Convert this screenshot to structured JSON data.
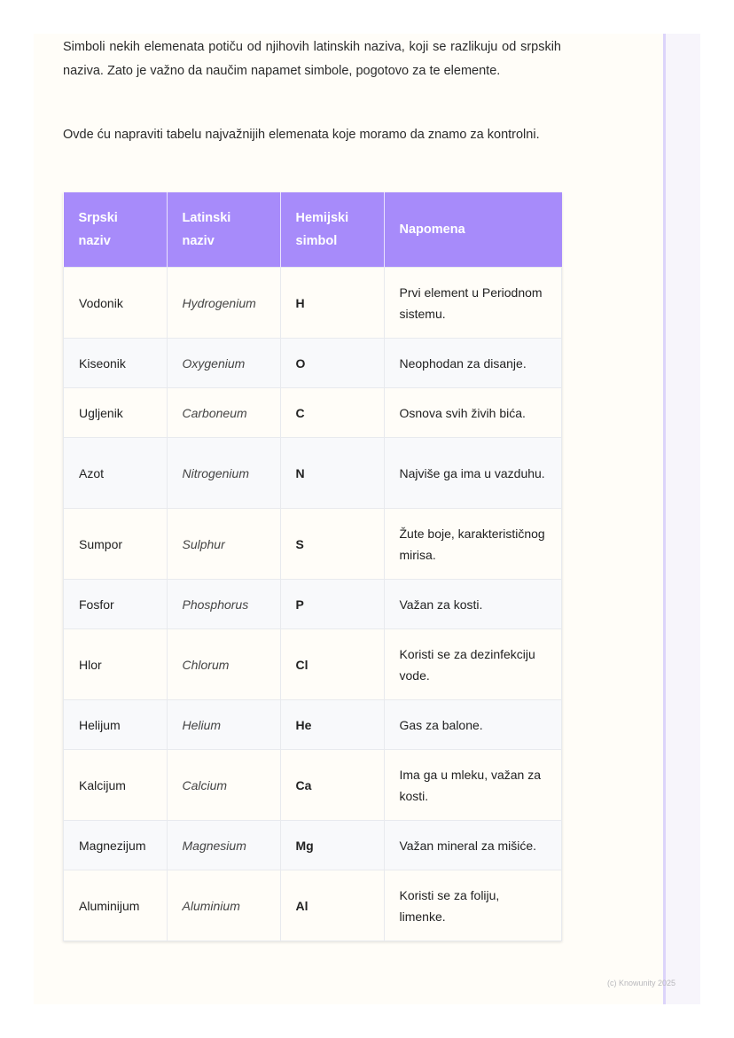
{
  "content": {
    "paragraph_1": "Simboli nekih elemenata potiču od njihovih latinskih naziva, koji se razlikuju od srpskih naziva. Zato je važno da naučim napamet simbole, pogotovo za te elemente.",
    "paragraph_2": "Ovde ću napraviti tabelu najvažnijih elemenata koje moramo da znamo za kontrolni."
  },
  "table": {
    "headers": [
      "Srpski naziv",
      "Latinski naziv",
      "Hemijski simbol",
      "Napomena"
    ],
    "header_color": "#a78bfa",
    "rows": [
      [
        "Vodonik",
        "Hydrogenium",
        "H",
        "Prvi element u Periodnom sistemu."
      ],
      [
        "Kiseonik",
        "Oxygenium",
        "O",
        "Neophodan za disanje."
      ],
      [
        "Ugljenik",
        "Carboneum",
        "C",
        "Osnova svih živih bića."
      ],
      [
        "Azot",
        "Nitrogenium",
        "N",
        "Najviše ga ima u vazduhu."
      ],
      [
        "Sumpor",
        "Sulphur",
        "S",
        "Žute boje, karakterističnog mirisa."
      ],
      [
        "Fosfor",
        "Phosphorus",
        "P",
        "Važan za kosti."
      ],
      [
        "Hlor",
        "Chlorum",
        "Cl",
        "Koristi se za dezinfekciju vode."
      ],
      [
        "Helijum",
        "Helium",
        "He",
        "Gas za balone."
      ],
      [
        "Kalcijum",
        "Calcium",
        "Ca",
        "Ima ga u mleku, važan za kosti."
      ],
      [
        "Magnezijum",
        "Magnesium",
        "Mg",
        "Važan mineral za mišiće."
      ],
      [
        "Aluminijum",
        "Aluminium",
        "Al",
        "Koristi se za foliju, limenke."
      ]
    ]
  },
  "footer": "(c) Knowunity 2025"
}
